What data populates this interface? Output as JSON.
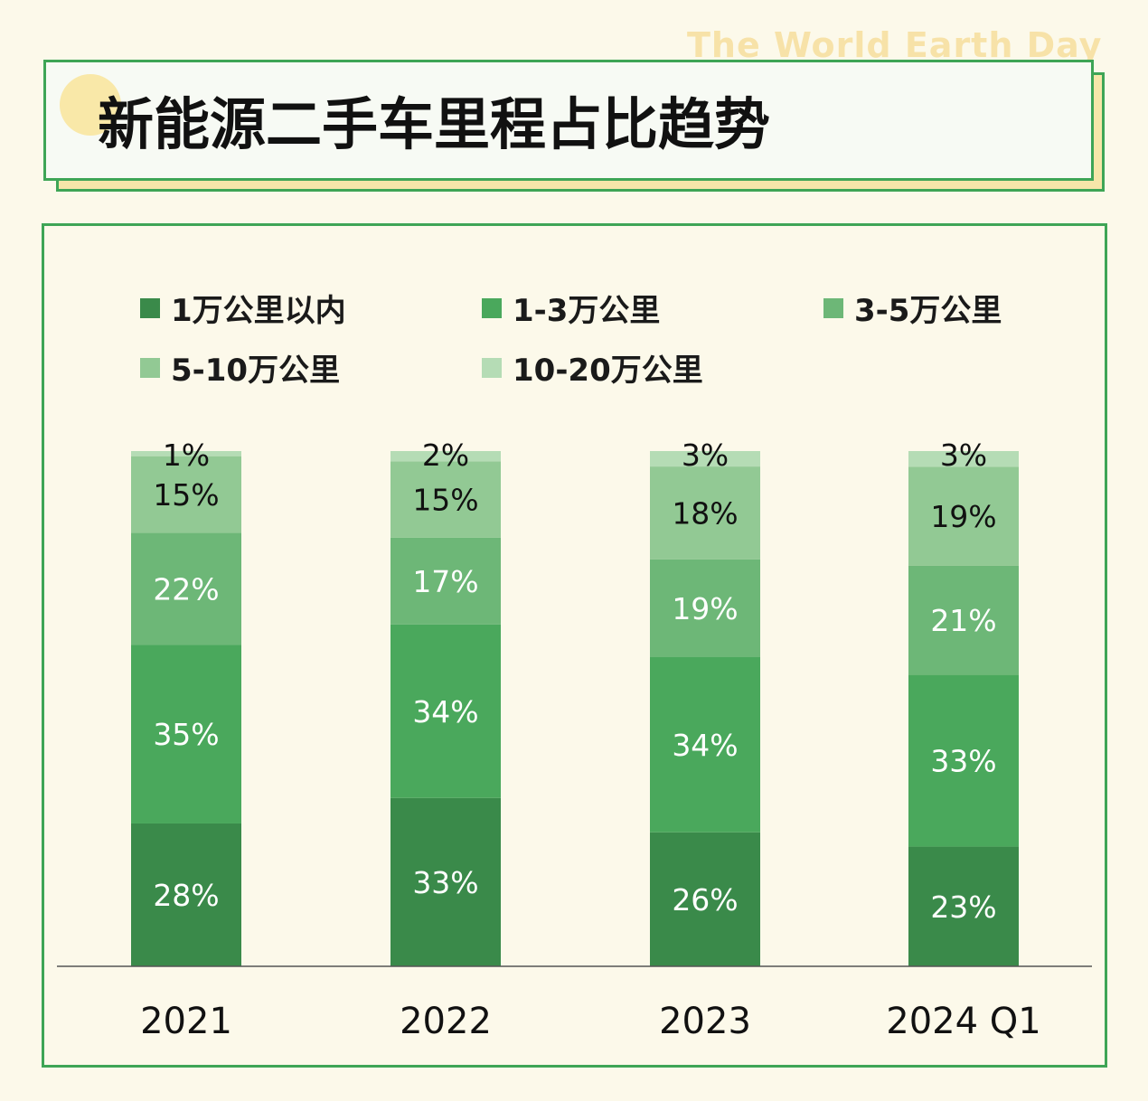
{
  "watermark": "The World Earth Day",
  "title": "新能源二手车里程占比趋势",
  "chart_data": {
    "type": "bar",
    "stacked": true,
    "categories": [
      "2021",
      "2022",
      "2023",
      "2024 Q1"
    ],
    "series": [
      {
        "name": "1万公里以内",
        "color": "#3a8a4a",
        "values": [
          28,
          33,
          26,
          23
        ]
      },
      {
        "name": "1-3万公里",
        "color": "#4aa85c",
        "values": [
          35,
          34,
          34,
          33
        ]
      },
      {
        "name": "3-5万公里",
        "color": "#6db777",
        "values": [
          22,
          17,
          19,
          21
        ]
      },
      {
        "name": "5-10万公里",
        "color": "#92c994",
        "values": [
          15,
          15,
          18,
          19
        ]
      },
      {
        "name": "10-20万公里",
        "color": "#b5dcb5",
        "values": [
          1,
          2,
          3,
          3
        ]
      }
    ],
    "value_suffix": "%",
    "legend_position": "top",
    "ylim": [
      0,
      100
    ],
    "grid": false
  }
}
